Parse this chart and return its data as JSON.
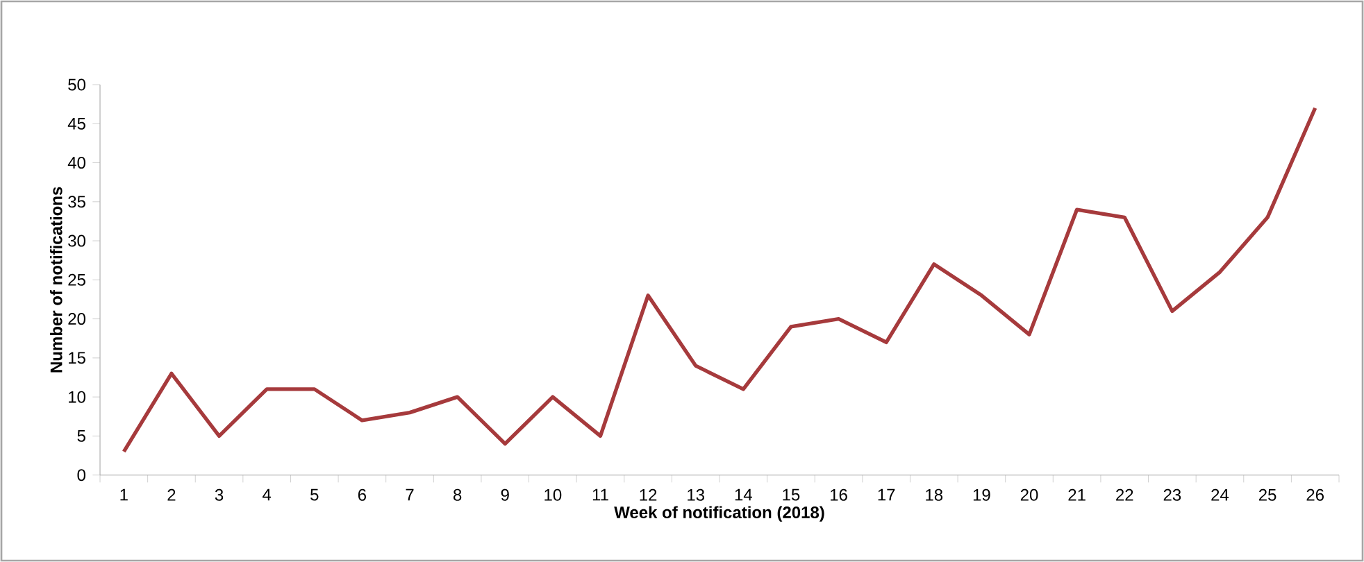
{
  "chart_data": {
    "type": "line",
    "categories": [
      "1",
      "2",
      "3",
      "4",
      "5",
      "6",
      "7",
      "8",
      "9",
      "10",
      "11",
      "12",
      "13",
      "14",
      "15",
      "16",
      "17",
      "18",
      "19",
      "20",
      "21",
      "22",
      "23",
      "24",
      "25",
      "26"
    ],
    "series": [
      {
        "color": "#a63a3c",
        "values": [
          3,
          13,
          5,
          11,
          11,
          7,
          8,
          10,
          4,
          10,
          5,
          23,
          14,
          11,
          19,
          20,
          17,
          27,
          23,
          18,
          34,
          33,
          21,
          26,
          33,
          47
        ]
      }
    ],
    "xlabel": "Week of notification (2018)",
    "ylabel": "Number of notifications",
    "ylim": [
      0,
      50
    ],
    "yticks": [
      0,
      5,
      10,
      15,
      20,
      25,
      30,
      35,
      40,
      45,
      50
    ],
    "grid": false,
    "marker": "none",
    "line_style": "solid"
  }
}
